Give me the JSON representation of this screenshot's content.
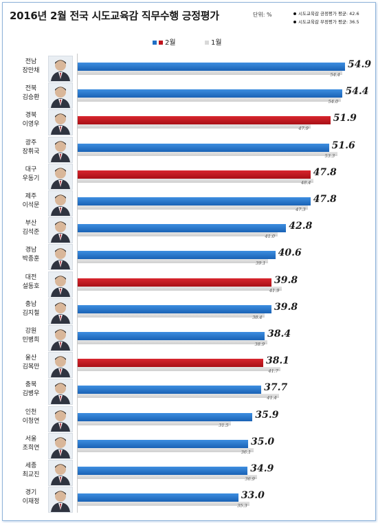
{
  "header": {
    "title": "2016년 2월 전국 시도교육감 직무수행 긍정평가",
    "unit": "단위: %",
    "avg_positive": "시도교육감 긍정평가 평균: 42.6",
    "avg_negative": "시도교육감 부정평가 평균: 36.5"
  },
  "legend": {
    "feb": "2월",
    "jan": "1월"
  },
  "colors": {
    "feb_positive": "#1f6fc5",
    "feb_negative": "#c0141c",
    "jan": "#d9d9d9"
  },
  "chart_data": {
    "type": "bar",
    "orientation": "horizontal",
    "title": "2016년 2월 전국 시도교육감 직무수행 긍정평가",
    "unit": "%",
    "categories": [
      {
        "region": "전남",
        "name": "장만채"
      },
      {
        "region": "전북",
        "name": "김승환"
      },
      {
        "region": "경북",
        "name": "이영우"
      },
      {
        "region": "광주",
        "name": "장휘국"
      },
      {
        "region": "대구",
        "name": "우동기"
      },
      {
        "region": "제주",
        "name": "이석문"
      },
      {
        "region": "부산",
        "name": "김석준"
      },
      {
        "region": "경남",
        "name": "박종훈"
      },
      {
        "region": "대전",
        "name": "설동호"
      },
      {
        "region": "충남",
        "name": "김지철"
      },
      {
        "region": "강원",
        "name": "민병희"
      },
      {
        "region": "울산",
        "name": "김복만"
      },
      {
        "region": "충북",
        "name": "김병우"
      },
      {
        "region": "인천",
        "name": "이청연"
      },
      {
        "region": "서울",
        "name": "조희연"
      },
      {
        "region": "세종",
        "name": "최교진"
      },
      {
        "region": "경기",
        "name": "이재정"
      }
    ],
    "series": [
      {
        "name": "2월",
        "values": [
          54.9,
          54.4,
          51.9,
          51.6,
          47.8,
          47.8,
          42.8,
          40.6,
          39.8,
          39.8,
          38.4,
          38.1,
          37.7,
          35.9,
          35.0,
          34.9,
          33.0
        ],
        "color_type": [
          "blue",
          "blue",
          "red",
          "blue",
          "red",
          "blue",
          "blue",
          "blue",
          "red",
          "blue",
          "blue",
          "red",
          "blue",
          "blue",
          "blue",
          "blue",
          "blue"
        ]
      },
      {
        "name": "1월",
        "values": [
          54.4,
          54.0,
          47.9,
          53.3,
          48.4,
          47.3,
          41.0,
          39.1,
          41.9,
          38.4,
          38.9,
          41.7,
          41.4,
          31.5,
          36.1,
          36.9,
          35.3
        ]
      }
    ],
    "xlim": [
      0,
      57
    ],
    "grid": false,
    "legend_position": "top-center"
  }
}
